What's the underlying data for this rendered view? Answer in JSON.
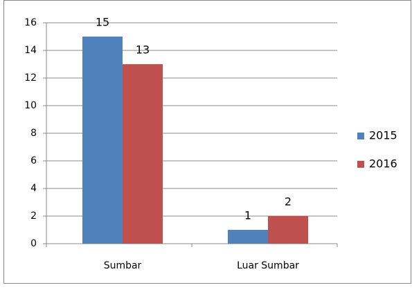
{
  "chart_data": {
    "type": "bar",
    "categories": [
      "Sumbar",
      "Luar Sumbar"
    ],
    "series": [
      {
        "name": "2015",
        "color": "#4f81bd",
        "values": [
          15,
          1
        ]
      },
      {
        "name": "2016",
        "color": "#c0504d",
        "values": [
          13,
          2
        ]
      }
    ],
    "ylim": [
      0,
      16
    ],
    "yticks": [
      0,
      2,
      4,
      6,
      8,
      10,
      12,
      14,
      16
    ],
    "grid": true,
    "legend": "right"
  }
}
